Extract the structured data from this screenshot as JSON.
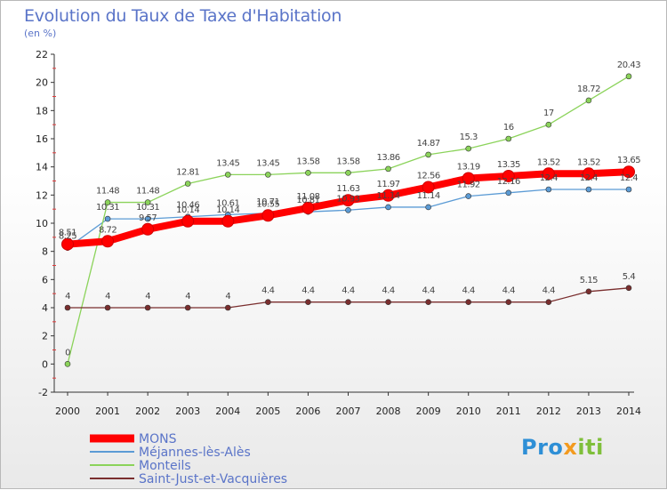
{
  "header": {
    "title": "Evolution du Taux de Taxe d'Habitation",
    "unit": "(en %)"
  },
  "logo": {
    "part1": "Pro",
    "part2": "x",
    "part3": "iti"
  },
  "chart_data": {
    "type": "line",
    "title": "Evolution du Taux de Taxe d'Habitation",
    "ylabel": "(en %)",
    "x": [
      "2000",
      "2001",
      "2002",
      "2003",
      "2004",
      "2005",
      "2006",
      "2007",
      "2008",
      "2009",
      "2010",
      "2011",
      "2012",
      "2013",
      "2014"
    ],
    "ylim": [
      -2,
      22
    ],
    "yticks": [
      "-2",
      "0",
      "2",
      "4",
      "6",
      "8",
      "10",
      "12",
      "14",
      "16",
      "18",
      "20",
      "22"
    ],
    "grid": false,
    "legend": "bottom-left",
    "series": [
      {
        "name": "MONS",
        "color": "#ff0000",
        "emphasis": true,
        "values": [
          8.51,
          8.72,
          9.57,
          10.14,
          10.14,
          10.55,
          11.08,
          11.63,
          11.97,
          12.56,
          13.19,
          13.35,
          13.52,
          13.52,
          13.65
        ],
        "labels": [
          "8.51",
          "8.72",
          "9.57",
          "10.14",
          "10.14",
          "10.55",
          "11.08",
          "11.63",
          "11.97",
          "12.56",
          "13.19",
          "13.35",
          "13.52",
          "13.52",
          "13.65"
        ]
      },
      {
        "name": "Méjannes-lès-Alès",
        "color": "#5b9bd5",
        "values": [
          8.25,
          10.31,
          10.31,
          10.46,
          10.61,
          10.71,
          10.81,
          10.93,
          11.14,
          11.14,
          11.92,
          12.16,
          12.4,
          12.4,
          12.4
        ],
        "labels": [
          "8.25",
          "10.31",
          "10.31",
          "10.46",
          "10.61",
          "10.71",
          "10.81",
          "10.93",
          "11.14",
          "11.14",
          "11.92",
          "12.16",
          "12.4",
          "12.4",
          "12.4"
        ]
      },
      {
        "name": "Monteils",
        "color": "#8bd35a",
        "values": [
          0,
          11.48,
          11.48,
          12.81,
          13.45,
          13.45,
          13.58,
          13.58,
          13.86,
          14.87,
          15.3,
          16,
          17,
          18.72,
          20.43
        ],
        "labels": [
          "0",
          "11.48",
          "11.48",
          "12.81",
          "13.45",
          "13.45",
          "13.58",
          "13.58",
          "13.86",
          "14.87",
          "15.3",
          "16",
          "17",
          "18.72",
          "20.43"
        ]
      },
      {
        "name": "Saint-Just-et-Vacquières",
        "color": "#7a2e2e",
        "values": [
          4,
          4,
          4,
          4,
          4,
          4.4,
          4.4,
          4.4,
          4.4,
          4.4,
          4.4,
          4.4,
          4.4,
          5.15,
          5.4
        ],
        "labels": [
          "4",
          "4",
          "4",
          "4",
          "4",
          "4.4",
          "4.4",
          "4.4",
          "4.4",
          "4.4",
          "4.4",
          "4.4",
          "4.4",
          "5.15",
          "5.4"
        ]
      }
    ]
  }
}
